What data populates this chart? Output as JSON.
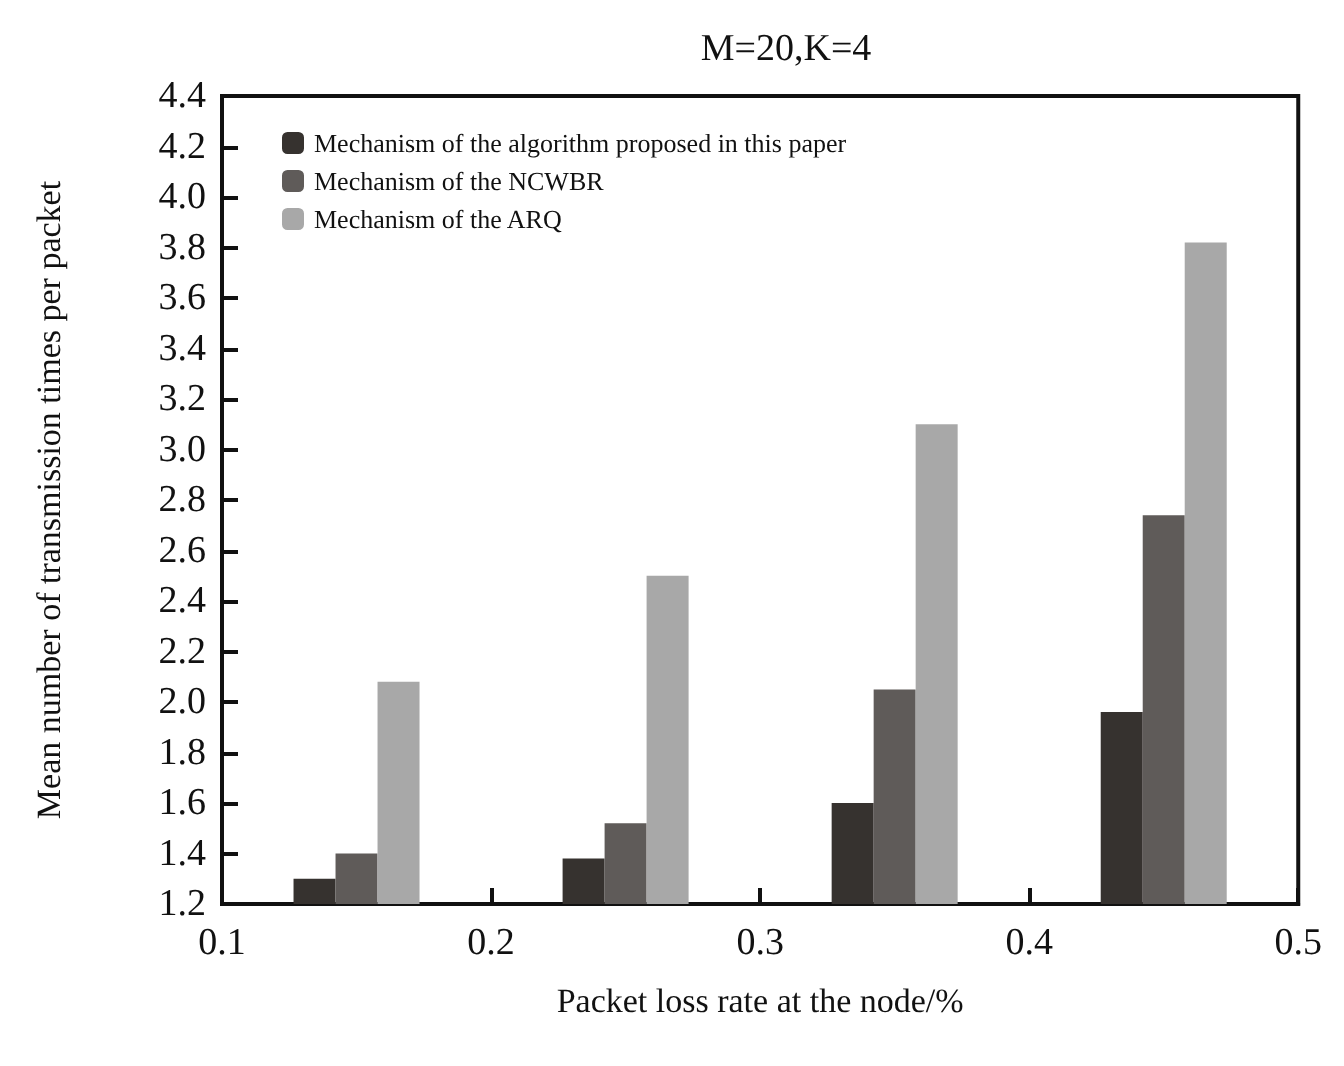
{
  "chart_data": {
    "type": "bar",
    "title": "M=20,K=4",
    "xlabel": "Packet loss rate at the node/%",
    "ylabel": "Mean number of transmission times per packet",
    "x": [
      0.15,
      0.25,
      0.35,
      0.45
    ],
    "series": [
      {
        "name": "Mechanism of the algorithm proposed in this paper",
        "color": "#36322f",
        "values": [
          1.3,
          1.38,
          1.6,
          1.96
        ]
      },
      {
        "name": "Mechanism of the NCWBR",
        "color": "#5f5b59",
        "values": [
          1.4,
          1.52,
          2.05,
          2.74
        ]
      },
      {
        "name": "Mechanism of the ARQ",
        "color": "#a8a8a8",
        "values": [
          2.08,
          2.5,
          3.1,
          3.82
        ]
      }
    ],
    "xlim": [
      0.1,
      0.5
    ],
    "xticks": [
      0.1,
      0.2,
      0.3,
      0.4,
      0.5
    ],
    "ylim": [
      1.2,
      4.4
    ],
    "yticks": [
      1.2,
      1.4,
      1.6,
      1.8,
      {
        "value": 2,
        "label": "2.0"
      },
      2.2,
      2.4,
      2.6,
      2.8,
      {
        "value": 3,
        "label": "3.0"
      },
      3.2,
      3.4,
      3.6,
      3.8,
      {
        "value": 4,
        "label": "4.0"
      },
      4.2,
      4.4
    ],
    "legend": "top left",
    "grid": false
  }
}
